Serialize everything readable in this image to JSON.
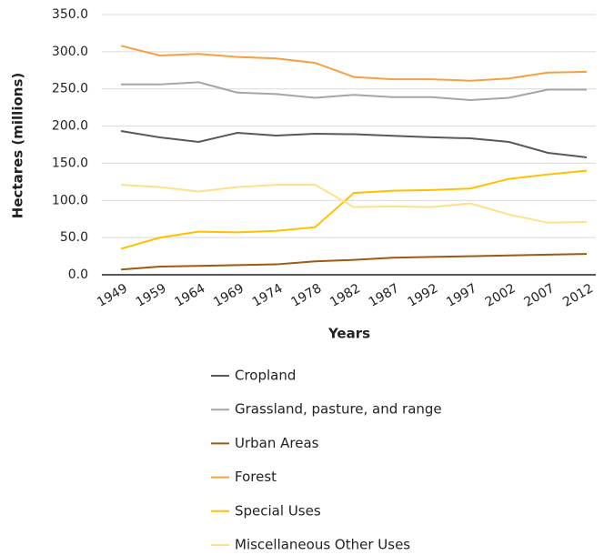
{
  "chart_data": {
    "type": "line",
    "x_label": "Years",
    "y_label": "Hectares (millions)",
    "categories": [
      "1949",
      "1959",
      "1964",
      "1969",
      "1974",
      "1978",
      "1982",
      "1987",
      "1992",
      "1997",
      "2002",
      "2007",
      "2012"
    ],
    "series": [
      {
        "name": "Cropland",
        "color": "#595959",
        "values": [
          193.3,
          184.8,
          178.7,
          190.9,
          187.2,
          189.7,
          189,
          187,
          185,
          183.5,
          178.7,
          164,
          157.9
        ]
      },
      {
        "name": "Grassland, pasture, and range",
        "color": "#a5a5a5",
        "values": [
          256,
          256,
          259,
          245,
          243,
          238,
          242,
          239,
          239,
          235,
          238,
          249,
          249
        ]
      },
      {
        "name": "Urban Areas",
        "color": "#9c5a12",
        "values": [
          7,
          11,
          12,
          13,
          14,
          18,
          20,
          23,
          24,
          25,
          26,
          27,
          28
        ]
      },
      {
        "name": "Forest",
        "color": "#f4a043",
        "values": [
          308,
          295,
          297,
          293,
          291,
          285,
          266,
          263,
          263,
          261,
          264,
          272,
          273
        ]
      },
      {
        "name": "Special Uses",
        "color": "#ffc000",
        "values": [
          35,
          50,
          58,
          57,
          59,
          64,
          110,
          113,
          114,
          116,
          129,
          135,
          140
        ]
      },
      {
        "name": "Miscellaneous Other Uses",
        "color": "#ffe08a",
        "values": [
          121,
          118,
          112,
          118,
          121,
          121,
          91,
          92,
          91,
          96,
          81,
          70,
          71
        ]
      }
    ],
    "ylim": [
      0,
      350
    ],
    "yticks": [
      {
        "value": 0,
        "label": "0.0"
      },
      {
        "value": 50,
        "label": "50.0"
      },
      {
        "value": 100,
        "label": "100.0"
      },
      {
        "value": 150,
        "label": "150.0"
      },
      {
        "value": 200,
        "label": "200.0"
      },
      {
        "value": 250,
        "label": "250.0"
      },
      {
        "value": 300,
        "label": "300.0"
      },
      {
        "value": 350,
        "label": "350.0"
      }
    ],
    "grid": true,
    "legend": "bottom"
  }
}
